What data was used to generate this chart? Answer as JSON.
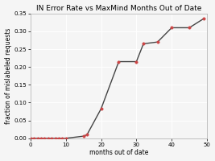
{
  "title": "IN Error Rate vs MaxMind Months Out of Date",
  "xlabel": "months out of date",
  "ylabel": "fraction of mislabeled requests",
  "x": [
    0,
    1,
    2,
    3,
    4,
    5,
    6,
    7,
    8,
    9,
    10,
    15,
    16,
    20,
    25,
    30,
    32,
    36,
    40,
    45,
    49
  ],
  "y": [
    0.0,
    0.0,
    0.0,
    0.0,
    0.0,
    0.0,
    0.0,
    0.0,
    0.0,
    0.0,
    0.0,
    0.006,
    0.01,
    0.083,
    0.215,
    0.215,
    0.265,
    0.27,
    0.31,
    0.31,
    0.335
  ],
  "line_color": "#444444",
  "marker_color": "#cc4444",
  "marker_style": "o",
  "marker_size": 2.5,
  "linewidth": 1.0,
  "xlim": [
    0,
    50
  ],
  "ylim": [
    0.0,
    0.35
  ],
  "xticks": [
    0,
    10,
    20,
    30,
    40,
    50
  ],
  "yticks": [
    0.0,
    0.05,
    0.1,
    0.15,
    0.2,
    0.25,
    0.3,
    0.35
  ],
  "grid": true,
  "background_color": "#f5f5f5",
  "title_fontsize": 6.5,
  "label_fontsize": 5.5,
  "tick_fontsize": 5.0
}
